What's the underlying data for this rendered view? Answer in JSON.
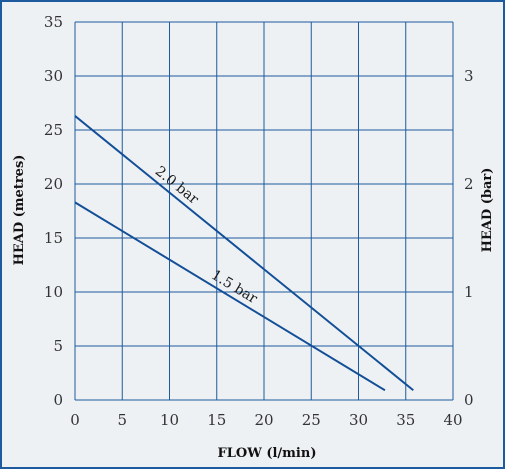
{
  "chart_data": {
    "type": "line",
    "xlabel": "FLOW (l/min)",
    "ylabel": "HEAD (metres)",
    "y2label": "HEAD (bar)",
    "xlim": [
      0,
      40
    ],
    "ylim": [
      0,
      35
    ],
    "y2lim": [
      0,
      3.5
    ],
    "xticks": [
      0,
      5,
      10,
      15,
      20,
      25,
      30,
      35,
      40
    ],
    "yticks": [
      0,
      5,
      10,
      15,
      20,
      25,
      30,
      35
    ],
    "y2ticks": [
      0,
      1,
      2,
      3
    ],
    "grid": true,
    "series": [
      {
        "name": "2.0 bar",
        "points": [
          [
            0,
            26.3
          ],
          [
            35.8,
            0.9
          ]
        ]
      },
      {
        "name": "1.5 bar",
        "points": [
          [
            0,
            18.3
          ],
          [
            32.8,
            0.9
          ]
        ]
      }
    ],
    "annotations": [
      {
        "text": "2.0 bar",
        "series": 0,
        "at_x": 8
      },
      {
        "text": "1.5 bar",
        "series": 1,
        "at_x": 14
      }
    ]
  },
  "colors": {
    "background": "#eef1f4",
    "frame": "#1d5a9e",
    "grid": "#1d5a9e",
    "line": "#134f97",
    "text": "#333333"
  }
}
